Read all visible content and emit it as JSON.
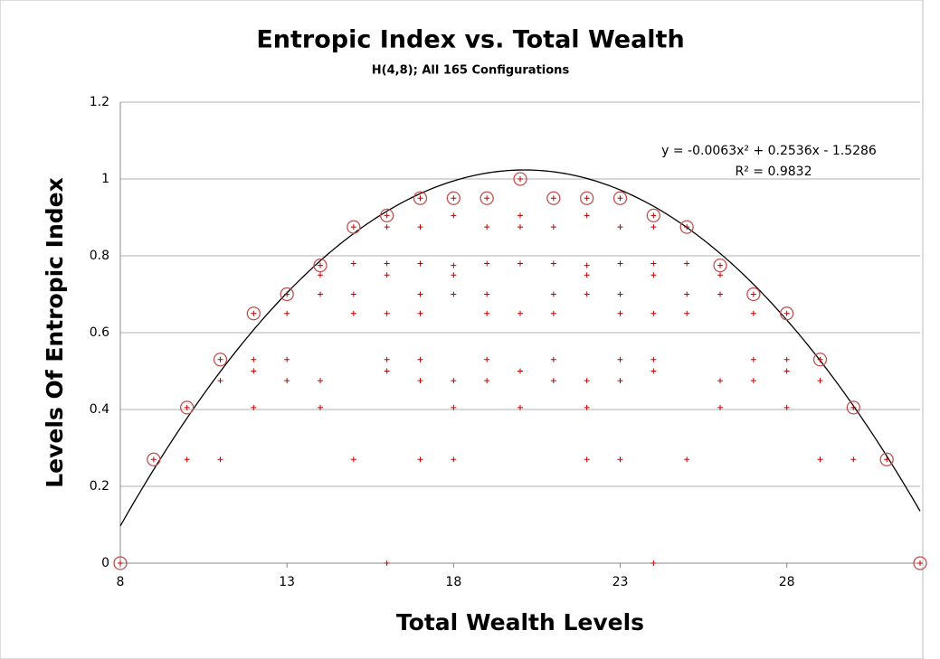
{
  "chart_data": {
    "type": "scatter",
    "title": "Entropic Index vs. Total Wealth",
    "subtitle": "H(4,8); All 165 Configurations",
    "x_label": "Total Wealth Levels",
    "y_label": "Levels Of Entropic Index",
    "xlim": [
      8,
      32
    ],
    "xticks": [
      8,
      13,
      18,
      23,
      28
    ],
    "ylim": [
      0,
      1.2
    ],
    "yticks": [
      0,
      0.2,
      0.4,
      0.6,
      0.8,
      1,
      1.2
    ],
    "grid": true,
    "series": [
      {
        "marker": "plus",
        "color": "#c00000",
        "x": [
          8,
          9,
          10,
          10,
          11,
          11,
          11,
          12,
          12,
          12,
          12,
          13,
          13,
          13,
          13,
          14,
          14,
          14,
          14,
          14,
          15,
          15,
          15,
          15,
          15,
          16,
          16,
          16,
          16,
          16,
          16,
          16,
          16,
          17,
          17,
          17,
          17,
          17,
          17,
          17,
          17,
          18,
          18,
          18,
          18,
          18,
          18,
          18,
          18,
          19,
          19,
          19,
          19,
          19,
          19,
          19,
          20,
          20,
          20,
          20,
          20,
          20,
          20,
          21,
          21,
          21,
          21,
          21,
          21,
          21,
          22,
          22,
          22,
          22,
          22,
          22,
          22,
          22,
          23,
          23,
          23,
          23,
          23,
          23,
          23,
          23,
          24,
          24,
          24,
          24,
          24,
          24,
          24,
          24,
          25,
          25,
          25,
          25,
          25,
          26,
          26,
          26,
          26,
          26,
          27,
          27,
          27,
          27,
          28,
          28,
          28,
          28,
          29,
          29,
          29,
          30,
          30,
          31,
          32
        ],
        "values": [
          0,
          0.27,
          0.27,
          0.405,
          0.27,
          0.475,
          0.53,
          0.405,
          0.5,
          0.53,
          0.65,
          0.475,
          0.53,
          0.65,
          0.7,
          0.405,
          0.475,
          0.7,
          0.75,
          0.775,
          0.27,
          0.65,
          0.7,
          0.78,
          0.875,
          0,
          0.5,
          0.53,
          0.65,
          0.75,
          0.78,
          0.875,
          0.905,
          0.27,
          0.475,
          0.53,
          0.65,
          0.7,
          0.78,
          0.875,
          0.95,
          0.27,
          0.405,
          0.475,
          0.7,
          0.75,
          0.775,
          0.905,
          0.95,
          0.475,
          0.53,
          0.65,
          0.7,
          0.78,
          0.875,
          0.95,
          0.405,
          0.5,
          0.65,
          0.78,
          0.875,
          0.905,
          1,
          0.475,
          0.53,
          0.65,
          0.7,
          0.78,
          0.875,
          0.95,
          0.27,
          0.405,
          0.475,
          0.7,
          0.75,
          0.775,
          0.905,
          0.95,
          0.27,
          0.475,
          0.53,
          0.65,
          0.7,
          0.78,
          0.875,
          0.95,
          0,
          0.5,
          0.53,
          0.65,
          0.75,
          0.78,
          0.875,
          0.905,
          0.27,
          0.65,
          0.7,
          0.78,
          0.875,
          0.405,
          0.475,
          0.7,
          0.75,
          0.775,
          0.475,
          0.53,
          0.65,
          0.7,
          0.405,
          0.5,
          0.53,
          0.65,
          0.27,
          0.475,
          0.53,
          0.27,
          0.405,
          0.27,
          0
        ]
      },
      {
        "marker": "circle",
        "color": "#c0504d",
        "x": [
          8,
          9,
          10,
          11,
          12,
          13,
          14,
          15,
          16,
          17,
          18,
          19,
          20,
          21,
          22,
          23,
          24,
          25,
          26,
          27,
          28,
          29,
          30,
          31,
          32
        ],
        "values": [
          0,
          0.27,
          0.405,
          0.53,
          0.65,
          0.7,
          0.775,
          0.875,
          0.905,
          0.95,
          0.95,
          0.95,
          1,
          0.95,
          0.95,
          0.95,
          0.905,
          0.875,
          0.775,
          0.7,
          0.65,
          0.53,
          0.405,
          0.27,
          0
        ]
      }
    ],
    "trendline": {
      "coefficients": [
        -0.0063,
        0.2536,
        -1.5286
      ],
      "color": "#000000",
      "equation": "y = -0.0063x² + 0.2536x - 1.5286",
      "r2_label": "R² = 0.9832"
    }
  }
}
